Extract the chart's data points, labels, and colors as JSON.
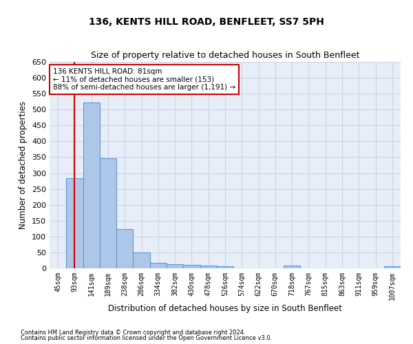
{
  "title": "136, KENTS HILL ROAD, BENFLEET, SS7 5PH",
  "subtitle": "Size of property relative to detached houses in South Benfleet",
  "xlabel": "Distribution of detached houses by size in South Benfleet",
  "ylabel": "Number of detached properties",
  "footer_line1": "Contains HM Land Registry data © Crown copyright and database right 2024.",
  "footer_line2": "Contains public sector information licensed under the Open Government Licence v3.0.",
  "categories": [
    "45sqm",
    "93sqm",
    "141sqm",
    "189sqm",
    "238sqm",
    "286sqm",
    "334sqm",
    "382sqm",
    "430sqm",
    "478sqm",
    "526sqm",
    "574sqm",
    "622sqm",
    "670sqm",
    "718sqm",
    "767sqm",
    "815sqm",
    "863sqm",
    "911sqm",
    "959sqm",
    "1007sqm"
  ],
  "values": [
    0,
    283,
    523,
    347,
    123,
    49,
    17,
    12,
    11,
    8,
    7,
    0,
    0,
    0,
    8,
    0,
    0,
    0,
    0,
    0,
    7
  ],
  "bar_color": "#aec6e8",
  "bar_edge_color": "#5b9bd5",
  "annotation_box_text_line1": "136 KENTS HILL ROAD: 81sqm",
  "annotation_box_text_line2": "← 11% of detached houses are smaller (153)",
  "annotation_box_text_line3": "88% of semi-detached houses are larger (1,191) →",
  "annotation_box_color": "#cc0000",
  "vertical_line_x": 1,
  "vertical_line_color": "#cc0000",
  "ylim": [
    0,
    650
  ],
  "yticks": [
    0,
    50,
    100,
    150,
    200,
    250,
    300,
    350,
    400,
    450,
    500,
    550,
    600,
    650
  ],
  "background_color": "#ffffff",
  "ax_background_color": "#e8eef7",
  "grid_color": "#c8d4e8",
  "title_fontsize": 10,
  "subtitle_fontsize": 9,
  "xlabel_fontsize": 8.5,
  "ylabel_fontsize": 8.5
}
